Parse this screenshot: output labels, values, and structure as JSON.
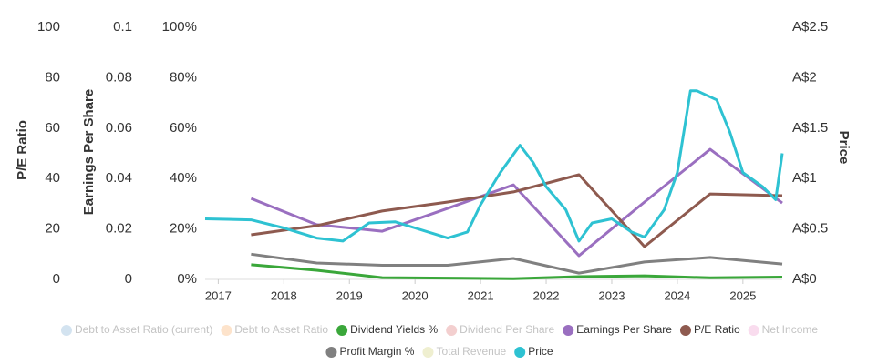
{
  "chart_data": {
    "type": "line",
    "xlim": [
      2016.8,
      2025.6
    ],
    "xticks": [
      2017,
      2018,
      2019,
      2020,
      2021,
      2022,
      2023,
      2024,
      2025
    ],
    "y_title": "P/E Ratio",
    "ylim": [
      0,
      100
    ],
    "yticks": [
      0,
      20,
      40,
      60,
      80,
      100
    ],
    "y2_title": "Earnings Per Share",
    "y2lim": [
      0,
      0.1
    ],
    "y2ticks": [
      0,
      0.02,
      0.04,
      0.06,
      0.08,
      0.1
    ],
    "y3lim": [
      0,
      100
    ],
    "y3ticks": [
      {
        "value": 0,
        "label": "0%"
      },
      {
        "value": 20,
        "label": "20%"
      },
      {
        "value": 40,
        "label": "40%"
      },
      {
        "value": 60,
        "label": "60%"
      },
      {
        "value": 80,
        "label": "80%"
      },
      {
        "value": 100,
        "label": "100%"
      }
    ],
    "y4_title": "Price",
    "y4lim": [
      0,
      2.5
    ],
    "y4ticks": [
      {
        "value": 0,
        "label": "A$0"
      },
      {
        "value": 0.5,
        "label": "A$0.5"
      },
      {
        "value": 1,
        "label": "A$1"
      },
      {
        "value": 1.5,
        "label": "A$1.5"
      },
      {
        "value": 2,
        "label": "A$2"
      },
      {
        "value": 2.5,
        "label": "A$2.5"
      }
    ],
    "series": [
      {
        "name": "Debt to Asset Ratio (current)",
        "color": "#d3e3f0",
        "hidden": true,
        "x": [],
        "values": []
      },
      {
        "name": "Debt to Asset Ratio",
        "color": "#fde3cb",
        "hidden": true,
        "x": [],
        "values": []
      },
      {
        "name": "Dividend Yields %",
        "color": "#3aa73a",
        "axis": "y3",
        "x": [
          2017.5,
          2018.5,
          2019.5,
          2020.5,
          2021.5,
          2022.5,
          2023.5,
          2024.5,
          2025.6
        ],
        "values": [
          5.8,
          3.6,
          0.7,
          0.5,
          0.3,
          1.1,
          1.4,
          0.6,
          0.9
        ]
      },
      {
        "name": "Dividend Per Share",
        "color": "#f3cfcf",
        "hidden": true,
        "x": [],
        "values": []
      },
      {
        "name": "Earnings Per Share",
        "color": "#9a6fc0",
        "axis": "y2",
        "x": [
          2017.5,
          2018.5,
          2019.5,
          2020.5,
          2021.5,
          2022.5,
          2023.5,
          2024.5,
          2025.6
        ],
        "values": [
          0.0321,
          0.0217,
          0.0191,
          0.0282,
          0.0375,
          0.0094,
          0.0307,
          0.0516,
          0.0303
        ]
      },
      {
        "name": "P/E Ratio",
        "color": "#8e5a4f",
        "axis": "y",
        "x": [
          2017.5,
          2018.5,
          2019.5,
          2020.5,
          2021.5,
          2022.5,
          2023.5,
          2024.5,
          2025.6
        ],
        "values": [
          17.7,
          21.3,
          27.1,
          30.7,
          34.7,
          41.5,
          13,
          33.9,
          33.2
        ]
      },
      {
        "name": "Net Income",
        "color": "#f9dcee",
        "hidden": true,
        "x": [],
        "values": []
      },
      {
        "name": "Profit Margin %",
        "color": "#808080",
        "axis": "y3",
        "x": [
          2017.5,
          2018.5,
          2019.5,
          2020.5,
          2021.5,
          2022.5,
          2023.5,
          2024.5,
          2025.6
        ],
        "values": [
          10,
          6.5,
          5.6,
          5.6,
          8.3,
          2.5,
          6.9,
          8.7,
          6.1
        ]
      },
      {
        "name": "Total Revenue",
        "color": "#efefd0",
        "hidden": true,
        "x": [],
        "values": []
      },
      {
        "name": "Price",
        "color": "#2ec2d2",
        "axis": "y4",
        "x": [
          2016.8,
          2017.5,
          2018.0,
          2018.5,
          2018.9,
          2019.3,
          2019.7,
          2020.0,
          2020.5,
          2020.8,
          2021.0,
          2021.3,
          2021.6,
          2021.8,
          2022.0,
          2022.3,
          2022.5,
          2022.7,
          2023.0,
          2023.3,
          2023.5,
          2023.8,
          2024.0,
          2024.2,
          2024.3,
          2024.6,
          2024.8,
          2025.0,
          2025.3,
          2025.5,
          2025.6
        ],
        "values": [
          0.6,
          0.59,
          0.51,
          0.41,
          0.38,
          0.56,
          0.57,
          0.51,
          0.41,
          0.47,
          0.74,
          1.06,
          1.33,
          1.16,
          0.92,
          0.69,
          0.38,
          0.56,
          0.6,
          0.47,
          0.42,
          0.69,
          1.06,
          1.87,
          1.87,
          1.78,
          1.46,
          1.06,
          0.92,
          0.79,
          1.25
        ]
      }
    ]
  }
}
